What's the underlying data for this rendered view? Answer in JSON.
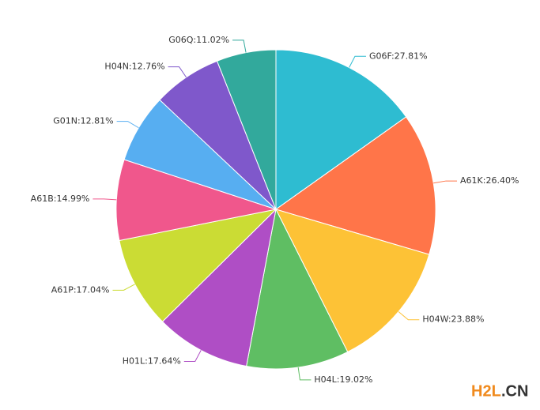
{
  "chart_data": {
    "type": "pie",
    "values": [
      27.81,
      26.4,
      23.88,
      19.02,
      17.64,
      17.04,
      14.99,
      12.81,
      12.76,
      11.02
    ],
    "value_labels": [
      "G06F:27.81%",
      "A61K:26.40%",
      "H04W:23.88%",
      "H04L:19.02%",
      "H01L:17.64%",
      "A61P:17.04%",
      "A61B:14.99%",
      "G01N:12.81%",
      "H04N:12.76%",
      "G06Q:11.02%"
    ],
    "colors": [
      "#2ebcd1",
      "#ff7549",
      "#fdc236",
      "#5fbe63",
      "#af4ec5",
      "#cbdc34",
      "#f0578c",
      "#57aef1",
      "#7f58cb",
      "#32a99c"
    ],
    "watermark": [
      "H2L",
      ".CN"
    ]
  }
}
